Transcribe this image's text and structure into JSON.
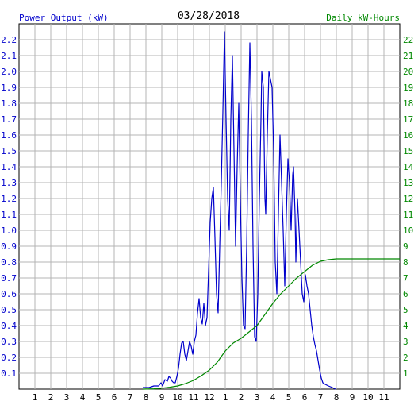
{
  "chart_data": {
    "type": "line",
    "title": "03/28/2018",
    "left_axis_label": "Power Output (kW)",
    "right_axis_label": "Daily kW-Hours",
    "x_tick_labels": [
      "1",
      "2",
      "3",
      "4",
      "5",
      "6",
      "7",
      "8",
      "9",
      "10",
      "11",
      "12",
      "1",
      "2",
      "3",
      "4",
      "5",
      "6",
      "7",
      "8",
      "9",
      "10",
      "11"
    ],
    "x_range_hours": [
      0,
      24
    ],
    "y_left_range": [
      0,
      2.3
    ],
    "y_left_ticks": [
      "0.1",
      "0.2",
      "0.3",
      "0.4",
      "0.5",
      "0.6",
      "0.7",
      "0.8",
      "0.9",
      "1.0",
      "1.1",
      "1.2",
      "1.3",
      "1.4",
      "1.5",
      "1.6",
      "1.7",
      "1.8",
      "1.9",
      "2.0",
      "2.1",
      "2.2"
    ],
    "y_right_range": [
      0,
      23
    ],
    "y_right_ticks": [
      "1",
      "2",
      "3",
      "4",
      "5",
      "6",
      "7",
      "8",
      "9",
      "10",
      "11",
      "12",
      "13",
      "14",
      "15",
      "16",
      "17",
      "18",
      "19",
      "20",
      "21",
      "22"
    ],
    "grid": true,
    "series": [
      {
        "axis": "left",
        "color": "#0000cc",
        "points": [
          [
            7.8,
            0.01
          ],
          [
            8.2,
            0.01
          ],
          [
            8.5,
            0.02
          ],
          [
            8.8,
            0.02
          ],
          [
            8.95,
            0.04
          ],
          [
            9.05,
            0.02
          ],
          [
            9.2,
            0.06
          ],
          [
            9.35,
            0.05
          ],
          [
            9.45,
            0.08
          ],
          [
            9.55,
            0.07
          ],
          [
            9.65,
            0.05
          ],
          [
            9.75,
            0.04
          ],
          [
            9.85,
            0.04
          ],
          [
            9.95,
            0.08
          ],
          [
            10.05,
            0.13
          ],
          [
            10.15,
            0.22
          ],
          [
            10.25,
            0.29
          ],
          [
            10.35,
            0.3
          ],
          [
            10.45,
            0.22
          ],
          [
            10.55,
            0.18
          ],
          [
            10.65,
            0.24
          ],
          [
            10.75,
            0.3
          ],
          [
            10.85,
            0.27
          ],
          [
            10.95,
            0.22
          ],
          [
            11.05,
            0.3
          ],
          [
            11.15,
            0.34
          ],
          [
            11.25,
            0.48
          ],
          [
            11.35,
            0.57
          ],
          [
            11.45,
            0.45
          ],
          [
            11.55,
            0.41
          ],
          [
            11.65,
            0.54
          ],
          [
            11.75,
            0.4
          ],
          [
            11.85,
            0.45
          ],
          [
            11.95,
            0.75
          ],
          [
            12.05,
            1.05
          ],
          [
            12.15,
            1.2
          ],
          [
            12.25,
            1.27
          ],
          [
            12.35,
            0.95
          ],
          [
            12.45,
            0.6
          ],
          [
            12.55,
            0.48
          ],
          [
            12.65,
            0.9
          ],
          [
            12.75,
            1.3
          ],
          [
            12.85,
            1.75
          ],
          [
            12.95,
            2.25
          ],
          [
            13.05,
            1.7
          ],
          [
            13.15,
            1.2
          ],
          [
            13.25,
            1.0
          ],
          [
            13.35,
            1.7
          ],
          [
            13.45,
            2.1
          ],
          [
            13.55,
            1.5
          ],
          [
            13.65,
            0.9
          ],
          [
            13.75,
            1.4
          ],
          [
            13.85,
            1.8
          ],
          [
            13.95,
            1.2
          ],
          [
            14.05,
            0.7
          ],
          [
            14.15,
            0.4
          ],
          [
            14.25,
            0.38
          ],
          [
            14.35,
            0.9
          ],
          [
            14.45,
            1.6
          ],
          [
            14.55,
            2.18
          ],
          [
            14.65,
            1.7
          ],
          [
            14.75,
            0.9
          ],
          [
            14.85,
            0.33
          ],
          [
            14.95,
            0.3
          ],
          [
            15.05,
            0.6
          ],
          [
            15.15,
            1.2
          ],
          [
            15.25,
            1.7
          ],
          [
            15.3,
            2.0
          ],
          [
            15.4,
            1.9
          ],
          [
            15.5,
            1.2
          ],
          [
            15.55,
            1.1
          ],
          [
            15.65,
            1.6
          ],
          [
            15.75,
            2.0
          ],
          [
            15.85,
            1.95
          ],
          [
            15.95,
            1.9
          ],
          [
            16.05,
            1.5
          ],
          [
            16.15,
            0.8
          ],
          [
            16.25,
            0.6
          ],
          [
            16.35,
            1.1
          ],
          [
            16.45,
            1.6
          ],
          [
            16.55,
            1.3
          ],
          [
            16.65,
            1.0
          ],
          [
            16.75,
            0.65
          ],
          [
            16.85,
            1.1
          ],
          [
            16.95,
            1.45
          ],
          [
            17.05,
            1.3
          ],
          [
            17.15,
            1.0
          ],
          [
            17.25,
            1.35
          ],
          [
            17.3,
            1.4
          ],
          [
            17.4,
            1.1
          ],
          [
            17.45,
            0.8
          ],
          [
            17.55,
            1.2
          ],
          [
            17.65,
            1.0
          ],
          [
            17.75,
            0.8
          ],
          [
            17.85,
            0.6
          ],
          [
            17.95,
            0.55
          ],
          [
            18.05,
            0.72
          ],
          [
            18.15,
            0.65
          ],
          [
            18.25,
            0.6
          ],
          [
            18.35,
            0.5
          ],
          [
            18.45,
            0.4
          ],
          [
            18.55,
            0.33
          ],
          [
            18.65,
            0.28
          ],
          [
            18.75,
            0.24
          ],
          [
            18.85,
            0.18
          ],
          [
            18.95,
            0.12
          ],
          [
            19.05,
            0.07
          ],
          [
            19.15,
            0.04
          ],
          [
            19.3,
            0.03
          ],
          [
            19.5,
            0.02
          ],
          [
            19.75,
            0.01
          ],
          [
            19.95,
            0.0
          ]
        ]
      },
      {
        "axis": "right",
        "color": "#008800",
        "points": [
          [
            7.8,
            0.0
          ],
          [
            8.5,
            0.02
          ],
          [
            9.0,
            0.06
          ],
          [
            9.5,
            0.12
          ],
          [
            10.0,
            0.2
          ],
          [
            10.5,
            0.35
          ],
          [
            11.0,
            0.55
          ],
          [
            11.5,
            0.85
          ],
          [
            12.0,
            1.2
          ],
          [
            12.5,
            1.7
          ],
          [
            13.0,
            2.4
          ],
          [
            13.5,
            2.9
          ],
          [
            14.0,
            3.2
          ],
          [
            14.5,
            3.6
          ],
          [
            15.0,
            4.0
          ],
          [
            15.5,
            4.7
          ],
          [
            16.0,
            5.4
          ],
          [
            16.5,
            6.0
          ],
          [
            17.0,
            6.5
          ],
          [
            17.5,
            7.0
          ],
          [
            18.0,
            7.4
          ],
          [
            18.5,
            7.8
          ],
          [
            19.0,
            8.05
          ],
          [
            19.5,
            8.15
          ],
          [
            20.0,
            8.2
          ],
          [
            24.0,
            8.2
          ]
        ]
      }
    ]
  }
}
